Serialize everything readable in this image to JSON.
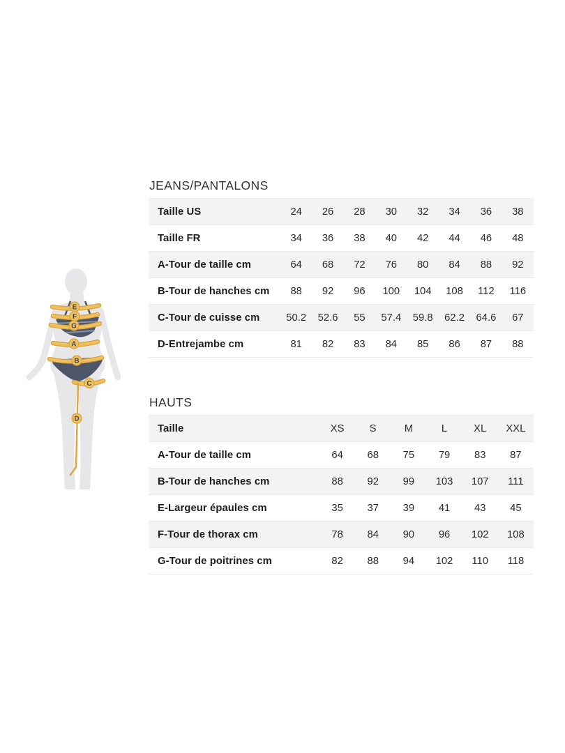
{
  "figure": {
    "labels": [
      "E",
      "F",
      "G",
      "A",
      "B",
      "C",
      "D"
    ],
    "colors": {
      "silhouette": "#E7E6E9",
      "bikini": "#4C5668",
      "bikini_stripe": "#8591A4",
      "band_fill": "#F0C05E",
      "band_outline": "#D9A23B",
      "letter": "#3A4758"
    }
  },
  "tables": [
    {
      "title": "JEANS/PANTALONS",
      "rows": [
        {
          "label": "Taille US",
          "values": [
            "24",
            "26",
            "28",
            "30",
            "32",
            "34",
            "36",
            "38"
          ]
        },
        {
          "label": "Taille FR",
          "values": [
            "34",
            "36",
            "38",
            "40",
            "42",
            "44",
            "46",
            "48"
          ]
        },
        {
          "label": "A-Tour de taille cm",
          "values": [
            "64",
            "68",
            "72",
            "76",
            "80",
            "84",
            "88",
            "92"
          ]
        },
        {
          "label": "B-Tour de hanches cm",
          "values": [
            "88",
            "92",
            "96",
            "100",
            "104",
            "108",
            "112",
            "116"
          ]
        },
        {
          "label": "C-Tour de cuisse cm",
          "values": [
            "50.2",
            "52.6",
            "55",
            "57.4",
            "59.8",
            "62.2",
            "64.6",
            "67"
          ]
        },
        {
          "label": "D-Entrejambe cm",
          "values": [
            "81",
            "82",
            "83",
            "84",
            "85",
            "86",
            "87",
            "88"
          ]
        }
      ]
    },
    {
      "title": "HAUTS",
      "rows": [
        {
          "label": "Taille",
          "values": [
            "XS",
            "S",
            "M",
            "L",
            "XL",
            "XXL"
          ]
        },
        {
          "label": "A-Tour de taille cm",
          "values": [
            "64",
            "68",
            "75",
            "79",
            "83",
            "87"
          ]
        },
        {
          "label": "B-Tour de hanches cm",
          "values": [
            "88",
            "92",
            "99",
            "103",
            "107",
            "111"
          ]
        },
        {
          "label": "E-Largeur épaules cm",
          "values": [
            "35",
            "37",
            "39",
            "41",
            "43",
            "45"
          ]
        },
        {
          "label": "F-Tour de thorax cm",
          "values": [
            "78",
            "84",
            "90",
            "96",
            "102",
            "108"
          ]
        },
        {
          "label": "G-Tour de poitrines cm",
          "values": [
            "82",
            "88",
            "94",
            "102",
            "110",
            "118"
          ]
        }
      ]
    }
  ]
}
